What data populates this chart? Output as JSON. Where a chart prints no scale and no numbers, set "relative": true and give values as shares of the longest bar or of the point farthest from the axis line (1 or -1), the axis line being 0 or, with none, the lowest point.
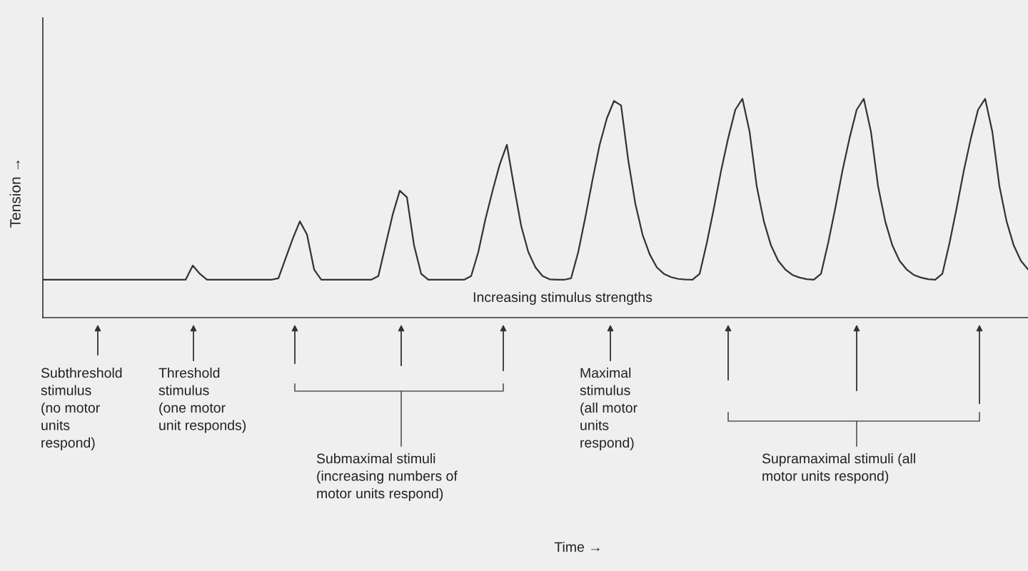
{
  "chart_data": {
    "type": "line",
    "relative": true,
    "grid": false,
    "ylabel": "Tension →",
    "categories": [
      null,
      null,
      null,
      null,
      null,
      null,
      null,
      null,
      null,
      null,
      null,
      null,
      null,
      null,
      null,
      null,
      null,
      null,
      null,
      null,
      null,
      null,
      null,
      null,
      null,
      null,
      null,
      null,
      null,
      null,
      null,
      null,
      null,
      null,
      null,
      null,
      null,
      null,
      null,
      null,
      null,
      null,
      null,
      null,
      null,
      null,
      null,
      null,
      null,
      null,
      null,
      null,
      null,
      null,
      null,
      null,
      null,
      null,
      null,
      null,
      null,
      null,
      null,
      null,
      null,
      null,
      null,
      null,
      null,
      null,
      null,
      null,
      null,
      null,
      null,
      null,
      null,
      null,
      null,
      null,
      null,
      null,
      null,
      null,
      null,
      null,
      null,
      null,
      null,
      null,
      null,
      null,
      null,
      null,
      null,
      null,
      null,
      null,
      null,
      null,
      null,
      null,
      null,
      null,
      null,
      null,
      null,
      null,
      null,
      null,
      null,
      null,
      null,
      null,
      null,
      null,
      null,
      null,
      null,
      null,
      null,
      null,
      null,
      null,
      null,
      null,
      null,
      null,
      null,
      null,
      null,
      null,
      null,
      null,
      null,
      null,
      null,
      null,
      null
    ],
    "series": [
      {
        "color": "#333333",
        "values": [
          0.173,
          0.173,
          0.173,
          0.173,
          0.173,
          0.173,
          0.173,
          0.173,
          0.173,
          0.173,
          0.173,
          0.173,
          0.173,
          0.173,
          0.173,
          0.173,
          0.173,
          0.173,
          0.173,
          0.173,
          0.173,
          0.238,
          0.2,
          0.173,
          0.173,
          0.173,
          0.173,
          0.173,
          0.173,
          0.173,
          0.173,
          0.173,
          0.173,
          0.18,
          0.27,
          0.36,
          0.44,
          0.38,
          0.22,
          0.173,
          0.173,
          0.173,
          0.173,
          0.173,
          0.173,
          0.173,
          0.173,
          0.19,
          0.33,
          0.47,
          0.58,
          0.55,
          0.33,
          0.2,
          0.173,
          0.173,
          0.173,
          0.173,
          0.173,
          0.173,
          0.19,
          0.3,
          0.45,
          0.58,
          0.7,
          0.79,
          0.6,
          0.42,
          0.3,
          0.23,
          0.19,
          0.175,
          0.173,
          0.173,
          0.18,
          0.3,
          0.46,
          0.63,
          0.79,
          0.91,
          0.99,
          0.97,
          0.72,
          0.52,
          0.38,
          0.29,
          0.23,
          0.2,
          0.185,
          0.177,
          0.174,
          0.173,
          0.2,
          0.34,
          0.5,
          0.67,
          0.82,
          0.95,
          1.0,
          0.85,
          0.6,
          0.44,
          0.33,
          0.26,
          0.22,
          0.195,
          0.183,
          0.176,
          0.173,
          0.2,
          0.34,
          0.5,
          0.67,
          0.82,
          0.95,
          1.0,
          0.85,
          0.6,
          0.44,
          0.33,
          0.26,
          0.22,
          0.195,
          0.183,
          0.176,
          0.173,
          0.2,
          0.34,
          0.5,
          0.67,
          0.82,
          0.95,
          1.0,
          0.85,
          0.6,
          0.44,
          0.33,
          0.26,
          0.22
        ]
      }
    ],
    "annotations": [
      "Increasing stimulus strengths",
      "Subthreshold\nstimulus\n(no motor\nunits\nrespond)",
      "Threshold\nstimulus\n(one motor\nunit responds)",
      "Submaximal stimuli\n(increasing numbers of\nmotor units respond)",
      "Maximal\nstimulus\n(all motor\nunits\nrespond)",
      "Supramaximal stimuli (all\nmotor units respond)",
      "Time →"
    ]
  }
}
